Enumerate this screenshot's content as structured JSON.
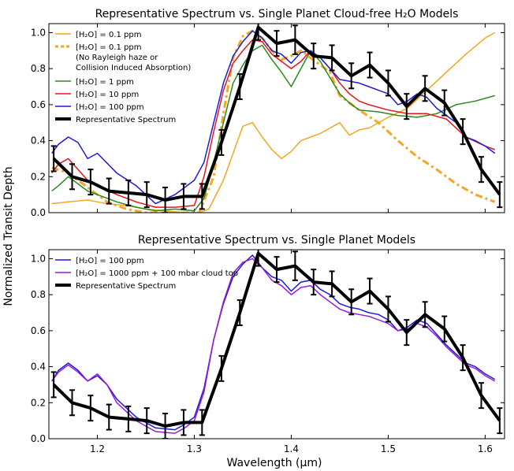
{
  "figure": {
    "shared_ylabel": "Normalized Transit Depth",
    "shared_xlabel": "Wavelength (μm)"
  },
  "chart_data": [
    {
      "type": "line",
      "title": "Representative Spectrum vs. Single Planet Cloud-free H₂O Models",
      "xlim": [
        1.15,
        1.62
      ],
      "ylim": [
        0.0,
        1.05
      ],
      "xticks": [
        1.2,
        1.3,
        1.4,
        1.5,
        1.6
      ],
      "yticks": [
        0.0,
        0.2,
        0.4,
        0.6,
        0.8,
        1.0
      ],
      "grid": false,
      "legend_position": "top-left",
      "series": [
        {
          "name": "[H₂O] = 0.1 ppm",
          "color": "#f5a623",
          "style": "solid",
          "x": [
            1.153,
            1.17,
            1.19,
            1.21,
            1.23,
            1.25,
            1.27,
            1.29,
            1.305,
            1.315,
            1.33,
            1.34,
            1.35,
            1.36,
            1.37,
            1.38,
            1.39,
            1.4,
            1.41,
            1.42,
            1.43,
            1.44,
            1.45,
            1.46,
            1.47,
            1.48,
            1.5,
            1.52,
            1.54,
            1.56,
            1.58,
            1.6,
            1.61
          ],
          "y": [
            0.05,
            0.06,
            0.07,
            0.05,
            0.04,
            0.02,
            0.01,
            0.0,
            0.0,
            0.02,
            0.18,
            0.33,
            0.48,
            0.5,
            0.42,
            0.35,
            0.3,
            0.34,
            0.4,
            0.42,
            0.44,
            0.47,
            0.5,
            0.43,
            0.46,
            0.47,
            0.53,
            0.58,
            0.68,
            0.78,
            0.88,
            0.97,
            1.0
          ]
        },
        {
          "name": "[H₂O] = 0.1 ppm (No Rayleigh haze or Collision Induced Absorption)",
          "color": "#f5a623",
          "style": "dashdot",
          "x": [
            1.153,
            1.17,
            1.19,
            1.21,
            1.23,
            1.25,
            1.27,
            1.29,
            1.305,
            1.32,
            1.33,
            1.34,
            1.35,
            1.36,
            1.37,
            1.38,
            1.39,
            1.4,
            1.41,
            1.42,
            1.43,
            1.44,
            1.45,
            1.47,
            1.49,
            1.51,
            1.53,
            1.55,
            1.57,
            1.59,
            1.61
          ],
          "y": [
            0.25,
            0.22,
            0.14,
            0.06,
            0.02,
            0.0,
            0.0,
            0.0,
            0.0,
            0.2,
            0.55,
            0.86,
            0.98,
            1.01,
            0.97,
            0.9,
            0.85,
            0.87,
            0.9,
            0.86,
            0.82,
            0.78,
            0.65,
            0.57,
            0.5,
            0.4,
            0.31,
            0.24,
            0.16,
            0.1,
            0.06
          ]
        },
        {
          "name": "[H₂O] = 1 ppm",
          "color": "#2a8a1e",
          "style": "solid",
          "x": [
            1.153,
            1.16,
            1.17,
            1.18,
            1.19,
            1.2,
            1.22,
            1.24,
            1.26,
            1.28,
            1.3,
            1.31,
            1.32,
            1.33,
            1.34,
            1.35,
            1.36,
            1.37,
            1.38,
            1.39,
            1.4,
            1.41,
            1.42,
            1.43,
            1.44,
            1.45,
            1.46,
            1.47,
            1.49,
            1.51,
            1.53,
            1.55,
            1.57,
            1.59,
            1.61
          ],
          "y": [
            0.12,
            0.15,
            0.2,
            0.16,
            0.12,
            0.1,
            0.06,
            0.03,
            0.01,
            0.02,
            0.01,
            0.08,
            0.28,
            0.5,
            0.72,
            0.82,
            0.9,
            0.93,
            0.85,
            0.78,
            0.7,
            0.8,
            0.9,
            0.84,
            0.75,
            0.66,
            0.61,
            0.57,
            0.56,
            0.54,
            0.53,
            0.55,
            0.6,
            0.62,
            0.65
          ]
        },
        {
          "name": "[H₂O] = 10 ppm",
          "color": "#e8141a",
          "style": "solid",
          "x": [
            1.153,
            1.16,
            1.17,
            1.18,
            1.19,
            1.2,
            1.22,
            1.24,
            1.26,
            1.28,
            1.3,
            1.31,
            1.32,
            1.33,
            1.34,
            1.35,
            1.36,
            1.37,
            1.38,
            1.39,
            1.4,
            1.41,
            1.42,
            1.43,
            1.44,
            1.45,
            1.46,
            1.47,
            1.48,
            1.5,
            1.52,
            1.54,
            1.56,
            1.58,
            1.6,
            1.61
          ],
          "y": [
            0.22,
            0.27,
            0.3,
            0.24,
            0.18,
            0.15,
            0.1,
            0.06,
            0.03,
            0.03,
            0.04,
            0.2,
            0.45,
            0.68,
            0.83,
            0.9,
            0.96,
            0.95,
            0.88,
            0.84,
            0.8,
            0.84,
            0.9,
            0.86,
            0.8,
            0.72,
            0.66,
            0.62,
            0.6,
            0.57,
            0.55,
            0.55,
            0.52,
            0.42,
            0.37,
            0.35
          ]
        },
        {
          "name": "[H₂O] = 100 ppm",
          "color": "#1c1cd8",
          "style": "solid",
          "x": [
            1.153,
            1.16,
            1.17,
            1.18,
            1.19,
            1.2,
            1.22,
            1.24,
            1.26,
            1.28,
            1.29,
            1.3,
            1.31,
            1.32,
            1.33,
            1.34,
            1.35,
            1.36,
            1.37,
            1.38,
            1.39,
            1.4,
            1.41,
            1.42,
            1.43,
            1.44,
            1.45,
            1.46,
            1.47,
            1.48,
            1.49,
            1.5,
            1.51,
            1.52,
            1.53,
            1.54,
            1.55,
            1.56,
            1.57,
            1.58,
            1.59,
            1.6,
            1.61
          ],
          "y": [
            0.33,
            0.38,
            0.42,
            0.39,
            0.3,
            0.33,
            0.22,
            0.15,
            0.05,
            0.1,
            0.14,
            0.18,
            0.28,
            0.5,
            0.72,
            0.87,
            0.95,
            1.01,
            0.97,
            0.9,
            0.88,
            0.83,
            0.89,
            0.9,
            0.86,
            0.8,
            0.74,
            0.73,
            0.72,
            0.7,
            0.68,
            0.66,
            0.6,
            0.62,
            0.66,
            0.64,
            0.58,
            0.54,
            0.5,
            0.42,
            0.4,
            0.37,
            0.33
          ]
        },
        {
          "name": "Representative Spectrum",
          "color": "#000000",
          "style": "errorbar",
          "x": [
            1.155,
            1.174,
            1.193,
            1.212,
            1.232,
            1.251,
            1.27,
            1.289,
            1.308,
            1.328,
            1.347,
            1.366,
            1.385,
            1.404,
            1.423,
            1.442,
            1.462,
            1.481,
            1.5,
            1.519,
            1.538,
            1.558,
            1.577,
            1.596,
            1.615
          ],
          "y": [
            0.3,
            0.2,
            0.17,
            0.12,
            0.11,
            0.1,
            0.07,
            0.09,
            0.09,
            0.39,
            0.7,
            1.03,
            0.94,
            0.96,
            0.87,
            0.86,
            0.76,
            0.82,
            0.72,
            0.59,
            0.69,
            0.61,
            0.45,
            0.24,
            0.1
          ],
          "yerr": [
            0.07,
            0.07,
            0.07,
            0.07,
            0.07,
            0.07,
            0.07,
            0.07,
            0.07,
            0.07,
            0.07,
            0.07,
            0.07,
            0.08,
            0.07,
            0.07,
            0.07,
            0.07,
            0.07,
            0.07,
            0.07,
            0.07,
            0.07,
            0.07,
            0.07
          ]
        }
      ]
    },
    {
      "type": "line",
      "title": "Representative Spectrum vs. Single Planet Models",
      "xlim": [
        1.15,
        1.62
      ],
      "ylim": [
        0.0,
        1.05
      ],
      "xticks": [
        1.2,
        1.3,
        1.4,
        1.5,
        1.6
      ],
      "yticks": [
        0.0,
        0.2,
        0.4,
        0.6,
        0.8,
        1.0
      ],
      "grid": false,
      "legend_position": "top-left",
      "series": [
        {
          "name": "[H₂O] = 100 ppm",
          "color": "#1c1cd8",
          "style": "solid",
          "x": [
            1.153,
            1.16,
            1.17,
            1.18,
            1.19,
            1.2,
            1.21,
            1.22,
            1.24,
            1.26,
            1.28,
            1.29,
            1.3,
            1.31,
            1.32,
            1.33,
            1.34,
            1.35,
            1.36,
            1.37,
            1.38,
            1.39,
            1.4,
            1.41,
            1.42,
            1.43,
            1.44,
            1.45,
            1.46,
            1.47,
            1.48,
            1.49,
            1.5,
            1.51,
            1.52,
            1.53,
            1.54,
            1.55,
            1.56,
            1.57,
            1.58,
            1.59,
            1.6,
            1.61
          ],
          "y": [
            0.32,
            0.38,
            0.42,
            0.38,
            0.32,
            0.35,
            0.3,
            0.22,
            0.12,
            0.06,
            0.05,
            0.08,
            0.12,
            0.28,
            0.55,
            0.75,
            0.9,
            0.97,
            1.02,
            0.95,
            0.9,
            0.88,
            0.82,
            0.87,
            0.88,
            0.83,
            0.8,
            0.75,
            0.73,
            0.72,
            0.7,
            0.69,
            0.66,
            0.6,
            0.62,
            0.66,
            0.64,
            0.58,
            0.52,
            0.47,
            0.42,
            0.4,
            0.36,
            0.33
          ]
        },
        {
          "name": "[H₂O] = 1000 ppm + 100 mbar cloud top",
          "color": "#9b1ad4",
          "style": "solid",
          "x": [
            1.153,
            1.16,
            1.17,
            1.18,
            1.19,
            1.2,
            1.21,
            1.22,
            1.24,
            1.26,
            1.28,
            1.29,
            1.3,
            1.31,
            1.32,
            1.33,
            1.34,
            1.35,
            1.36,
            1.37,
            1.38,
            1.39,
            1.4,
            1.41,
            1.42,
            1.43,
            1.44,
            1.45,
            1.46,
            1.47,
            1.48,
            1.49,
            1.5,
            1.51,
            1.52,
            1.53,
            1.54,
            1.55,
            1.56,
            1.57,
            1.58,
            1.59,
            1.6,
            1.61
          ],
          "y": [
            0.32,
            0.37,
            0.41,
            0.37,
            0.32,
            0.36,
            0.3,
            0.2,
            0.1,
            0.04,
            0.03,
            0.06,
            0.1,
            0.26,
            0.55,
            0.76,
            0.92,
            0.98,
            1.0,
            0.95,
            0.88,
            0.85,
            0.8,
            0.84,
            0.85,
            0.8,
            0.76,
            0.72,
            0.7,
            0.69,
            0.68,
            0.66,
            0.64,
            0.6,
            0.61,
            0.64,
            0.62,
            0.57,
            0.51,
            0.46,
            0.41,
            0.39,
            0.35,
            0.32
          ]
        },
        {
          "name": "Representative Spectrum",
          "color": "#000000",
          "style": "errorbar",
          "x": [
            1.155,
            1.174,
            1.193,
            1.212,
            1.232,
            1.251,
            1.27,
            1.289,
            1.308,
            1.328,
            1.347,
            1.366,
            1.385,
            1.404,
            1.423,
            1.442,
            1.462,
            1.481,
            1.5,
            1.519,
            1.538,
            1.558,
            1.577,
            1.596,
            1.615
          ],
          "y": [
            0.3,
            0.2,
            0.17,
            0.12,
            0.11,
            0.1,
            0.07,
            0.09,
            0.09,
            0.39,
            0.7,
            1.03,
            0.94,
            0.96,
            0.87,
            0.86,
            0.76,
            0.82,
            0.72,
            0.59,
            0.69,
            0.61,
            0.45,
            0.24,
            0.1
          ],
          "yerr": [
            0.07,
            0.07,
            0.07,
            0.07,
            0.07,
            0.07,
            0.07,
            0.07,
            0.07,
            0.07,
            0.07,
            0.07,
            0.07,
            0.08,
            0.07,
            0.07,
            0.07,
            0.07,
            0.07,
            0.07,
            0.07,
            0.07,
            0.07,
            0.07,
            0.07
          ]
        }
      ]
    }
  ]
}
